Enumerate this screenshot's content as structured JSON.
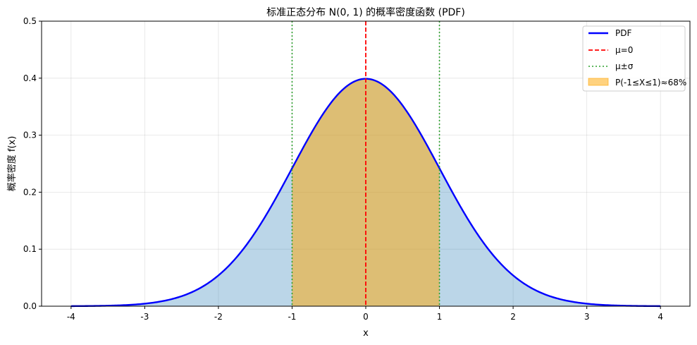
{
  "chart_data": {
    "type": "line",
    "title": "标准正态分布 N(0, 1) 的概率密度函数 (PDF)",
    "xlabel": "x",
    "ylabel": "概率密度 f(x)",
    "xlim": [
      -4.4,
      4.4
    ],
    "ylim": [
      0,
      0.5
    ],
    "xticks": [
      -4,
      -3,
      -2,
      -1,
      0,
      1,
      2,
      3,
      4
    ],
    "xtick_labels": [
      "-4",
      "-3",
      "-2",
      "-1",
      "0",
      "1",
      "2",
      "3",
      "4"
    ],
    "yticks": [
      0,
      0.1,
      0.2,
      0.3,
      0.4,
      0.5
    ],
    "ytick_labels": [
      "0.0",
      "0.1",
      "0.2",
      "0.3",
      "0.4",
      "0.5"
    ],
    "grid": true,
    "legend_position": "top-right",
    "series": [
      {
        "name": "PDF",
        "style": "solid",
        "color": "#0000ff",
        "x": [
          -4.0,
          -3.5,
          -3.0,
          -2.5,
          -2.0,
          -1.5,
          -1.0,
          -0.5,
          0.0,
          0.5,
          1.0,
          1.5,
          2.0,
          2.5,
          3.0,
          3.5,
          4.0
        ],
        "y": [
          0.0001,
          0.0009,
          0.0044,
          0.0175,
          0.054,
          0.1295,
          0.242,
          0.3521,
          0.3989,
          0.3521,
          0.242,
          0.1295,
          0.054,
          0.0175,
          0.0044,
          0.0009,
          0.0001
        ]
      }
    ],
    "vlines": [
      {
        "name": "μ=0",
        "x": [
          0
        ],
        "style": "dashed",
        "color": "#ff0000"
      },
      {
        "name": "μ±σ",
        "x": [
          -1,
          1
        ],
        "style": "dotted",
        "color": "#2ca02c"
      }
    ],
    "shaded_regions": [
      {
        "name": "",
        "x_range": [
          -4,
          4
        ],
        "color": "#1f77b4",
        "opacity": 0.3
      },
      {
        "name": "P(-1≤X≤1)≈68%",
        "x_range": [
          -1,
          1
        ],
        "color": "#ffa500",
        "opacity": 0.5
      }
    ]
  }
}
